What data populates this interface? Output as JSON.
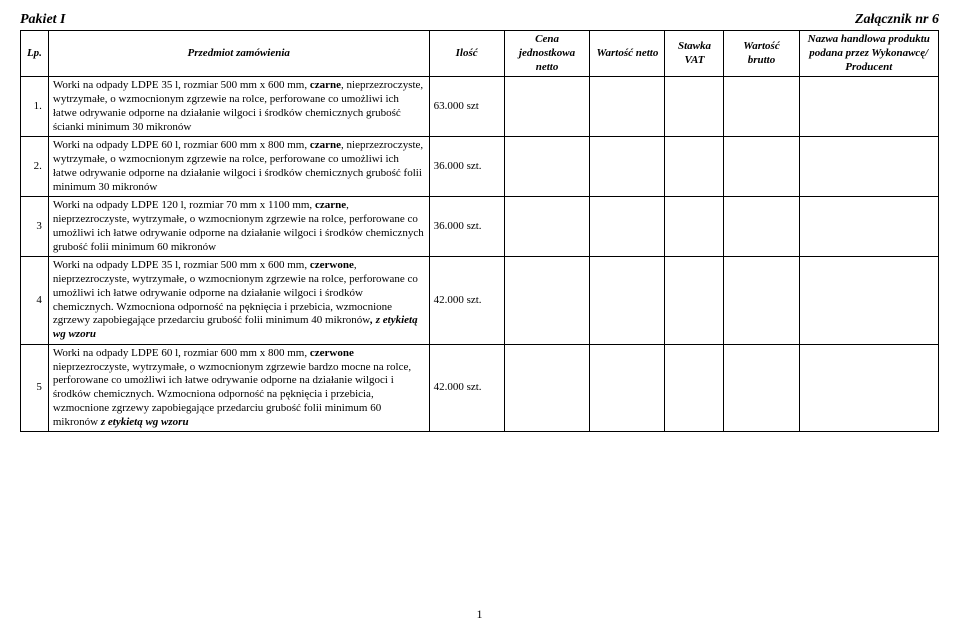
{
  "header": {
    "left": "Pakiet I",
    "right": "Załącznik nr 6"
  },
  "columns": {
    "lp": "Lp.",
    "desc": "Przedmiot zamówienia",
    "ilosc": "Ilość",
    "cena": "Cena jednostkowa netto",
    "wn": "Wartość netto",
    "vat": "Stawka VAT",
    "wb": "Wartość brutto",
    "nazwa": "Nazwa handlowa produktu podana przez Wykonawcę/ Producent"
  },
  "rows": [
    {
      "lp": "1.",
      "pre": "Worki na odpady LDPE 35 l, rozmiar 500 mm x 600 mm, ",
      "bold": "czarne",
      "post": ", nieprzezroczyste, wytrzymałe, o wzmocnionym zgrzewie na rolce, perforowane co umożliwi ich łatwe odrywanie  odporne na działanie wilgoci i środków  chemicznych grubość ścianki minimum 30  mikronów",
      "ilosc": "63.000 szt"
    },
    {
      "lp": "2.",
      "pre": "Worki na odpady LDPE 60 l, rozmiar 600 mm x 800 mm, ",
      "bold": "czarne",
      "post": ", nieprzezroczyste, wytrzymałe,  o wzmocnionym zgrzewie na rolce, perforowane co umożliwi ich łatwe odrywanie odporne na działanie wilgoci i środków  chemicznych grubość folii minimum  30 mikronów",
      "ilosc": "36.000 szt."
    },
    {
      "lp": "3",
      "pre": "Worki na odpady LDPE 120 l,  rozmiar 70 mm x 1100 mm, ",
      "bold": "czarne",
      "post": ", nieprzezroczyste, wytrzymałe,  o wzmocnionym zgrzewie na rolce, perforowane co umożliwi ich łatwe odrywanie odporne na działanie wilgoci i środków  chemicznych grubość folii minimum  60 mikronów",
      "ilosc": "36.000 szt."
    },
    {
      "lp": "4",
      "pre": "Worki na odpady LDPE 35 l,  rozmiar 500 mm x 600 mm, ",
      "bold": "czerwone",
      "post": ", nieprzezroczyste, wytrzymałe,  o wzmocnionym zgrzewie na rolce, perforowane co umożliwi ich łatwe odrywanie odporne na działanie wilgoci i środków  chemicznych. Wzmocniona odporność na pęknięcia i przebicia, wzmocnione zgrzewy zapobiegające przedarciu   grubość folii minimum 40  mikronów",
      "italic_tail": ", z etykietą wg wzoru",
      "ilosc": "42.000 szt."
    },
    {
      "lp": "5",
      "pre": "Worki na odpady LDPE 60 l, rozmiar 600 mm x 800 mm, ",
      "bold": "czerwone",
      "post": " nieprzezroczyste, wytrzymałe,  o wzmocnionym zgrzewie bardzo mocne na rolce, perforowane co umożliwi ich łatwe odrywanie  odporne na działanie wilgoci i środków chemicznych. Wzmocniona odporność na pęknięcia i przebicia, wzmocnione zgrzewy zapobiegające przedarciu    grubość folii minimum 60 mikronów ",
      "italic_tail": "z etykietą wg wzoru",
      "ilosc": "42.000 szt."
    }
  ],
  "page_number": "1"
}
